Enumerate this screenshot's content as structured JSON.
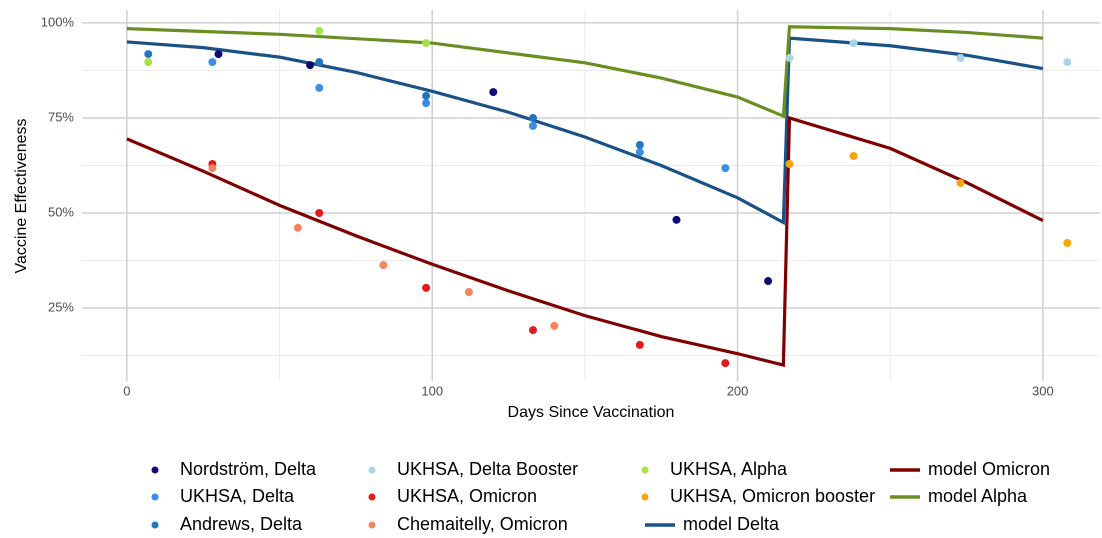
{
  "chart_data": {
    "type": "scatter",
    "x_label": "Days Since Vaccination",
    "y_label": "Vaccine Effectiveness",
    "xlim": [
      -14.7,
      318.7
    ],
    "ylim": [
      5.8,
      103.4
    ],
    "xticks": [
      0,
      100,
      200,
      300
    ],
    "yticks": [
      {
        "value": 25,
        "label": "25%"
      },
      {
        "value": 50,
        "label": "50%"
      },
      {
        "value": 75,
        "label": "75%"
      },
      {
        "value": 100,
        "label": "100%"
      }
    ],
    "x_minor_grid": [
      50,
      150,
      250
    ],
    "y_minor_grid": [
      12.5,
      37.5,
      62.5,
      87.5
    ],
    "grid": true,
    "legend_position": "bottom",
    "series": [
      {
        "name": "Nordström, Delta",
        "color": "#0a0a78",
        "mode": "markers",
        "x": [
          30,
          60,
          120,
          180,
          210
        ],
        "values": [
          91.8,
          88.9,
          81.8,
          48.2,
          32.1
        ]
      },
      {
        "name": "UKHSA, Delta",
        "color": "#3a8ee6",
        "mode": "markers",
        "x": [
          28,
          63,
          98,
          133,
          168,
          196
        ],
        "values": [
          89.7,
          82.9,
          78.9,
          72.9,
          66,
          61.8
        ]
      },
      {
        "name": "Andrews, Delta",
        "color": "#2474c0",
        "mode": "markers",
        "x": [
          7,
          63,
          98,
          133,
          168
        ],
        "values": [
          91.8,
          89.7,
          80.8,
          75,
          67.9
        ]
      },
      {
        "name": "UKHSA, Delta Booster",
        "color": "#a9d4e6",
        "mode": "markers",
        "x": [
          217,
          238,
          273,
          308
        ],
        "values": [
          90.8,
          94.7,
          90.8,
          89.7
        ]
      },
      {
        "name": "UKHSA, Omicron",
        "color": "#e31a1c",
        "mode": "markers",
        "x": [
          28,
          63,
          98,
          133,
          168,
          196
        ],
        "values": [
          62.9,
          50,
          30.3,
          19.2,
          15.3,
          10.5
        ]
      },
      {
        "name": "Chemaitelly, Omicron",
        "color": "#f28462",
        "mode": "markers",
        "x": [
          28,
          56,
          84,
          112,
          140
        ],
        "values": [
          61.8,
          46.1,
          36.3,
          29.2,
          20.3
        ]
      },
      {
        "name": "UKHSA, Alpha",
        "color": "#a6e34a",
        "mode": "markers",
        "x": [
          7,
          63,
          98
        ],
        "values": [
          89.7,
          97.9,
          94.7
        ]
      },
      {
        "name": "UKHSA, Omicron booster",
        "color": "#f5a40b",
        "mode": "markers",
        "x": [
          217,
          238,
          273,
          308
        ],
        "values": [
          62.9,
          65,
          57.9,
          42.1
        ]
      },
      {
        "name": "model Delta",
        "color": "#1a5288",
        "mode": "lines",
        "x": [
          0,
          25,
          50,
          75,
          100,
          125,
          150,
          175,
          200,
          215,
          217,
          250,
          275,
          300
        ],
        "values": [
          95,
          93.5,
          91,
          87,
          82,
          76.5,
          70,
          62.5,
          54,
          47.5,
          96,
          94,
          91.5,
          88
        ]
      },
      {
        "name": "model Omicron",
        "color": "#7f0000",
        "mode": "lines",
        "x": [
          0,
          25,
          50,
          75,
          100,
          125,
          150,
          175,
          200,
          215,
          217,
          250,
          275,
          300
        ],
        "values": [
          69.5,
          61,
          52,
          44,
          36.5,
          29.5,
          23,
          17.5,
          13,
          10,
          75,
          67,
          58,
          48
        ]
      },
      {
        "name": "model Alpha",
        "color": "#6b8e23",
        "mode": "lines",
        "x": [
          0,
          50,
          100,
          150,
          175,
          200,
          215,
          217,
          250,
          275,
          300
        ],
        "values": [
          98.5,
          97,
          94.7,
          89.5,
          85.5,
          80.5,
          75.5,
          99,
          98.5,
          97.5,
          96
        ]
      }
    ]
  }
}
